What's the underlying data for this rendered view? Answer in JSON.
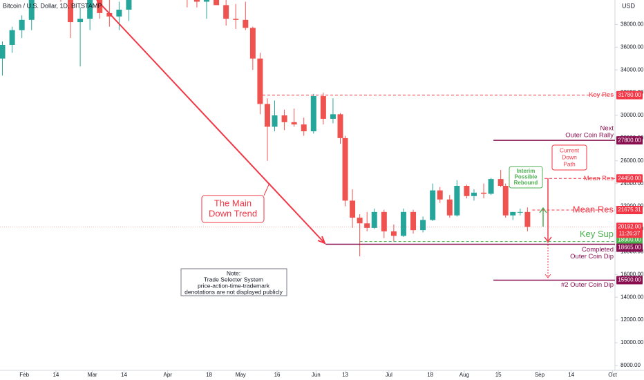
{
  "chart_data": {
    "type": "candlestick",
    "title": "Bitcoin / U.S. Dollar, 1D, BITSTAMP",
    "currency": "USD",
    "up_color": "#26a69a",
    "down_color": "#ef5350",
    "grid": false,
    "xlim": [
      "01-22",
      "10-02"
    ],
    "ylim": [
      7570,
      40150
    ],
    "xticks": [
      {
        "value": "02-01",
        "label": "Feb"
      },
      {
        "value": "02-14",
        "label": "14"
      },
      {
        "value": "03-01",
        "label": "Mar"
      },
      {
        "value": "03-14",
        "label": "14"
      },
      {
        "value": "04-01",
        "label": "Apr"
      },
      {
        "value": "04-18",
        "label": "18"
      },
      {
        "value": "05-01",
        "label": "May"
      },
      {
        "value": "05-16",
        "label": "16"
      },
      {
        "value": "06-01",
        "label": "Jun"
      },
      {
        "value": "06-13",
        "label": "13"
      },
      {
        "value": "07-01",
        "label": "Jul"
      },
      {
        "value": "07-18",
        "label": "18"
      },
      {
        "value": "08-01",
        "label": "Aug"
      },
      {
        "value": "08-15",
        "label": "15"
      },
      {
        "value": "09-01",
        "label": "Sep"
      },
      {
        "value": "09-14",
        "label": "14"
      },
      {
        "value": "10-01",
        "label": "Oct"
      }
    ],
    "yticks": [
      {
        "value": 8000,
        "label": "8000.00"
      },
      {
        "value": 10000,
        "label": "10000.00"
      },
      {
        "value": 12000,
        "label": "12000.00"
      },
      {
        "value": 14000,
        "label": "14000.00"
      },
      {
        "value": 16000,
        "label": "16000.00"
      },
      {
        "value": 18000,
        "label": "18000.00"
      },
      {
        "value": 20000,
        "label": "20000.00"
      },
      {
        "value": 22000,
        "label": "22000.00"
      },
      {
        "value": 24000,
        "label": "24000.00"
      },
      {
        "value": 26000,
        "label": "26000.00"
      },
      {
        "value": 28000,
        "label": "28000.00"
      },
      {
        "value": 30000,
        "label": "30000.00"
      },
      {
        "value": 32000,
        "label": "32000.00"
      },
      {
        "value": 34000,
        "label": "34000.00"
      },
      {
        "value": 36000,
        "label": "36000.00"
      },
      {
        "value": 38000,
        "label": "38000.00"
      }
    ],
    "candles": {
      "x": [
        "01-23",
        "01-27",
        "01-31",
        "02-04",
        "02-08",
        "02-12",
        "02-16",
        "02-20",
        "02-24",
        "02-28",
        "03-04",
        "03-08",
        "03-12",
        "03-16",
        "03-20",
        "03-24",
        "03-28",
        "04-01",
        "04-05",
        "04-09",
        "04-13",
        "04-17",
        "04-21",
        "04-25",
        "04-29",
        "05-03",
        "05-06",
        "05-09",
        "05-12",
        "05-15",
        "05-19",
        "05-23",
        "05-27",
        "05-31",
        "06-04",
        "06-08",
        "06-11",
        "06-13",
        "06-16",
        "06-19",
        "06-22",
        "06-25",
        "06-29",
        "07-03",
        "07-07",
        "07-11",
        "07-15",
        "07-19",
        "07-22",
        "07-26",
        "07-29",
        "08-02",
        "08-05",
        "08-09",
        "08-12",
        "08-16",
        "08-18",
        "08-21",
        "08-24",
        "08-27"
      ],
      "open": [
        35000,
        36200,
        37500,
        38400,
        41000,
        43500,
        42200,
        40500,
        38200,
        38500,
        43200,
        39000,
        38700,
        39300,
        41200,
        42500,
        44200,
        47000,
        46300,
        43500,
        40500,
        40000,
        41200,
        39700,
        38500,
        38400,
        37700,
        35000,
        31000,
        29000,
        30000,
        29400,
        29200,
        28600,
        31700,
        29700,
        30100,
        28000,
        22500,
        21000,
        20500,
        20100,
        21500,
        19800,
        19400,
        21500,
        19900,
        20800,
        23400,
        22600,
        21200,
        23800,
        22900,
        23200,
        23100,
        24400,
        23800,
        21200,
        21500,
        21500
      ],
      "high": [
        36500,
        37800,
        38800,
        41500,
        45000,
        44500,
        44200,
        41000,
        39500,
        44500,
        45000,
        42500,
        40000,
        42000,
        43000,
        44500,
        48000,
        47500,
        47000,
        43800,
        41500,
        42000,
        42900,
        40500,
        39800,
        40000,
        37800,
        35500,
        31500,
        31300,
        30500,
        30600,
        29800,
        31900,
        32000,
        31500,
        30200,
        28200,
        23500,
        21300,
        21500,
        21800,
        21700,
        20400,
        21800,
        21700,
        21100,
        24000,
        23700,
        23000,
        24300,
        23900,
        23500,
        24000,
        24500,
        25200,
        24000,
        21500,
        21800,
        21900
      ],
      "low": [
        33500,
        35500,
        36800,
        37500,
        40500,
        41800,
        40000,
        36800,
        34300,
        37500,
        38500,
        37800,
        37500,
        38300,
        40500,
        42000,
        44000,
        44500,
        43000,
        39500,
        39500,
        38500,
        39800,
        37900,
        37600,
        37500,
        34000,
        30100,
        26000,
        28600,
        28700,
        29000,
        28200,
        28400,
        29200,
        29300,
        27500,
        22000,
        20100,
        17600,
        19800,
        20000,
        19200,
        18900,
        19300,
        19600,
        19700,
        20700,
        22300,
        21000,
        21100,
        22700,
        22500,
        22700,
        23000,
        23700,
        21000,
        20800,
        21200,
        19800
      ],
      "close": [
        36200,
        37500,
        38400,
        41000,
        43500,
        42200,
        40500,
        38200,
        38500,
        43200,
        39000,
        38700,
        39300,
        41200,
        42500,
        44200,
        47000,
        46300,
        43500,
        40500,
        40000,
        41200,
        39700,
        38500,
        38400,
        37700,
        35000,
        31000,
        29000,
        30000,
        29400,
        29200,
        28600,
        31700,
        29700,
        30100,
        28000,
        22500,
        21000,
        20500,
        20100,
        21500,
        19800,
        19400,
        21500,
        19900,
        20800,
        23400,
        22600,
        21200,
        23800,
        22900,
        23200,
        23100,
        24400,
        23800,
        21200,
        21500,
        21500,
        20192
      ]
    },
    "last": {
      "value": 20192,
      "label": "20192.00",
      "timer": "11:26:37"
    },
    "levels": [
      {
        "value": 31780,
        "label": "31780.00",
        "text": [
          "Key Res"
        ],
        "color": "#f23645",
        "style": "dashed",
        "start": "05-10"
      },
      {
        "value": 27800,
        "label": "27800.00",
        "text": [
          "Next",
          "Outer Coin Rally"
        ],
        "color": "#880e4f",
        "style": "solid",
        "start": "08-13"
      },
      {
        "value": 24450,
        "label": "24450.00",
        "text": [
          "Mean Res"
        ],
        "color": "#f23645",
        "style": "dashed",
        "start": "09-03"
      },
      {
        "value": 21675.31,
        "label": "21675.31",
        "text": [
          "Mean Res"
        ],
        "color": "#f23645",
        "style": "dashed",
        "start": "08-29"
      },
      {
        "value": 18900,
        "label": "18900.00",
        "text": [
          "Key Sup"
        ],
        "color": "#4caf50",
        "style": "dashed",
        "start": "06-19"
      },
      {
        "value": 18665,
        "label": "18665.00",
        "text": [
          "Completed",
          "Outer Coin Dip"
        ],
        "color": "#880e4f",
        "style": "solid",
        "start": "06-05"
      },
      {
        "value": 15500,
        "label": "15500.00",
        "text": [
          "#2 Outer Coin Dip"
        ],
        "color": "#880e4f",
        "style": "solid",
        "start": "08-13"
      }
    ],
    "annotations": {
      "trend": [
        "The Main",
        "Down Trend"
      ],
      "note": [
        "Note:",
        "Trade Selecter System",
        "price-action-time-trademark",
        "denotations are not displayed publicly"
      ],
      "rebound": [
        "Interim",
        "Possible",
        "Rebound"
      ],
      "down_path": [
        "Current",
        "Down",
        "Path"
      ]
    }
  }
}
